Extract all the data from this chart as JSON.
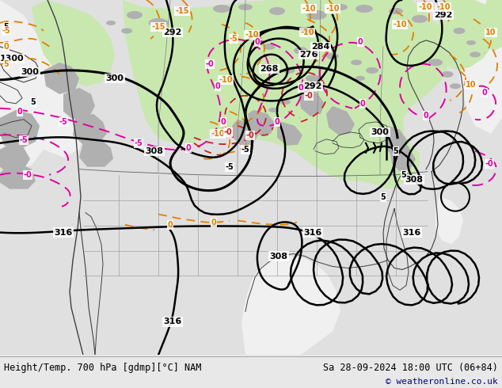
{
  "title_left": "Height/Temp. 700 hPa [gdmp][°C] NAM",
  "title_right": "Sa 28-09-2024 18:00 UTC (06+84)",
  "copyright": "© weatheronline.co.uk",
  "bg_color": "#e8e8e8",
  "map_bg": "#f0f0f0",
  "green_fill": "#c8e8b0",
  "gray_fill": "#b8b8b8",
  "white_fill": "#ffffff",
  "contour_black": "#000000",
  "contour_orange": "#e08000",
  "contour_magenta": "#e000a0",
  "contour_red": "#cc2020",
  "copyright_color": "#000090",
  "fig_width": 6.34,
  "fig_height": 4.9,
  "dpi": 100
}
